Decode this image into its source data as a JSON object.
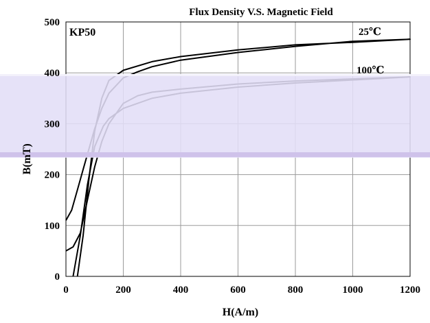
{
  "chart_data": {
    "type": "line",
    "title": "Flux Density V.S. Magnetic Field",
    "xlabel": "H(A/m)",
    "ylabel": "B(mT)",
    "xlim": [
      0,
      1200
    ],
    "ylim": [
      0,
      500
    ],
    "xticks": [
      "0",
      "200",
      "400",
      "600",
      "800",
      "1000",
      "1200"
    ],
    "yticks": [
      "0",
      "100",
      "200",
      "300",
      "400",
      "500"
    ],
    "grid": true,
    "annotations": {
      "material": "KP50",
      "label_25": "25℃",
      "label_100": "100℃"
    },
    "series": [
      {
        "name": "25℃",
        "x": [
          40,
          60,
          80,
          100,
          125,
          150,
          200,
          300,
          400,
          600,
          800,
          1000,
          1200,
          1000,
          800,
          600,
          400,
          300,
          250,
          200,
          150,
          125,
          100,
          80,
          60,
          40,
          20,
          0
        ],
        "y": [
          0,
          80,
          190,
          285,
          350,
          385,
          405,
          422,
          432,
          445,
          455,
          460,
          466,
          462,
          452,
          440,
          425,
          412,
          402,
          390,
          360,
          330,
          290,
          250,
          210,
          170,
          130,
          110
        ]
      },
      {
        "name": "100℃",
        "x": [
          25,
          50,
          75,
          100,
          130,
          150,
          200,
          300,
          400,
          600,
          800,
          1000,
          1200,
          1000,
          800,
          600,
          400,
          300,
          250,
          200,
          150,
          125,
          100,
          75,
          50,
          25,
          0
        ],
        "y": [
          0,
          80,
          180,
          255,
          295,
          310,
          330,
          350,
          360,
          372,
          380,
          386,
          392,
          388,
          384,
          378,
          368,
          362,
          355,
          340,
          300,
          265,
          215,
          150,
          85,
          58,
          50
        ]
      }
    ]
  }
}
